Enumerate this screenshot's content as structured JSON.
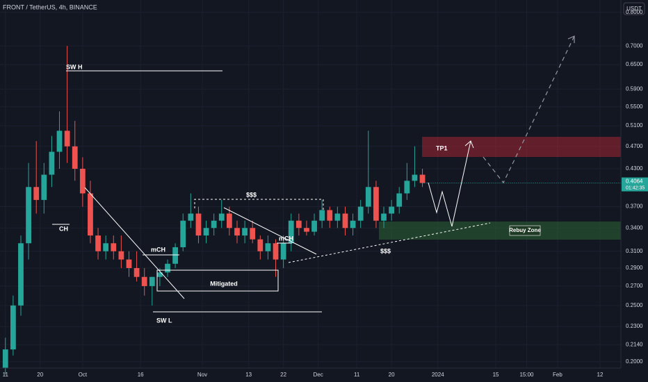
{
  "chart_data": {
    "type": "candlestick",
    "title": "FRONT / TetherUS, 4h, BINANCE",
    "currency": "USDT",
    "log_scale": true,
    "grid": true,
    "up_color": "#26a69a",
    "down_color": "#ef5350",
    "ylim": [
      0.195,
      0.84
    ],
    "yticks": [
      {
        "value": 0.2,
        "label": "0.2000"
      },
      {
        "value": 0.214,
        "label": "0.2140"
      },
      {
        "value": 0.23,
        "label": "0.2300"
      },
      {
        "value": 0.25,
        "label": "0.2500"
      },
      {
        "value": 0.27,
        "label": "0.2700"
      },
      {
        "value": 0.29,
        "label": "0.2900"
      },
      {
        "value": 0.31,
        "label": "0.3100"
      },
      {
        "value": 0.34,
        "label": "0.3400"
      },
      {
        "value": 0.37,
        "label": "0.3700"
      },
      {
        "value": 0.43,
        "label": "0.4300"
      },
      {
        "value": 0.47,
        "label": "0.4700"
      },
      {
        "value": 0.51,
        "label": "0.5100"
      },
      {
        "value": 0.55,
        "label": "0.5500"
      },
      {
        "value": 0.59,
        "label": "0.5900"
      },
      {
        "value": 0.65,
        "label": "0.6500"
      },
      {
        "value": 0.7,
        "label": "0.7000"
      },
      {
        "value": 0.8,
        "label": "0.8000"
      }
    ],
    "last_price": {
      "value": 0.4064,
      "label": "0.4064"
    },
    "countdown": "01:42:35",
    "xlim": [
      -0.7,
      79.7
    ],
    "xticks": [
      {
        "value": 0,
        "label": "11"
      },
      {
        "value": 4.5,
        "label": "20"
      },
      {
        "value": 10,
        "label": "Oct"
      },
      {
        "value": 17.5,
        "label": "16"
      },
      {
        "value": 25.5,
        "label": "Nov"
      },
      {
        "value": 31.5,
        "label": "13"
      },
      {
        "value": 36,
        "label": "22"
      },
      {
        "value": 40.5,
        "label": "Dec"
      },
      {
        "value": 45.5,
        "label": "11"
      },
      {
        "value": 50,
        "label": "20"
      },
      {
        "value": 56,
        "label": "2024"
      },
      {
        "value": 63.5,
        "label": "15"
      },
      {
        "value": 67.5,
        "label": "15:00"
      },
      {
        "value": 71.5,
        "label": "Feb"
      },
      {
        "value": 77,
        "label": "12"
      }
    ],
    "open": [
      0.195,
      0.21,
      0.25,
      0.32,
      0.4,
      0.38,
      0.42,
      0.46,
      0.5,
      0.47,
      0.43,
      0.39,
      0.33,
      0.31,
      0.32,
      0.31,
      0.3,
      0.29,
      0.28,
      0.27,
      0.28,
      0.285,
      0.295,
      0.315,
      0.35,
      0.36,
      0.33,
      0.34,
      0.35,
      0.36,
      0.34,
      0.33,
      0.34,
      0.325,
      0.31,
      0.32,
      0.3,
      0.32,
      0.35,
      0.34,
      0.335,
      0.35,
      0.365,
      0.35,
      0.36,
      0.34,
      0.35,
      0.37,
      0.4,
      0.35,
      0.36,
      0.37,
      0.39,
      0.41,
      0.42
    ],
    "high": [
      0.22,
      0.26,
      0.33,
      0.44,
      0.48,
      0.44,
      0.49,
      0.54,
      0.7,
      0.52,
      0.45,
      0.41,
      0.34,
      0.33,
      0.33,
      0.33,
      0.31,
      0.31,
      0.29,
      0.28,
      0.29,
      0.3,
      0.32,
      0.36,
      0.39,
      0.37,
      0.35,
      0.36,
      0.38,
      0.37,
      0.35,
      0.35,
      0.35,
      0.33,
      0.33,
      0.325,
      0.33,
      0.36,
      0.36,
      0.35,
      0.36,
      0.38,
      0.37,
      0.37,
      0.37,
      0.36,
      0.38,
      0.5,
      0.41,
      0.37,
      0.38,
      0.4,
      0.44,
      0.47,
      0.43
    ],
    "low": [
      0.19,
      0.205,
      0.24,
      0.3,
      0.36,
      0.36,
      0.4,
      0.43,
      0.44,
      0.41,
      0.37,
      0.32,
      0.3,
      0.3,
      0.3,
      0.29,
      0.28,
      0.275,
      0.26,
      0.25,
      0.27,
      0.28,
      0.29,
      0.31,
      0.34,
      0.32,
      0.32,
      0.33,
      0.34,
      0.33,
      0.32,
      0.32,
      0.32,
      0.3,
      0.3,
      0.28,
      0.29,
      0.31,
      0.33,
      0.33,
      0.33,
      0.34,
      0.34,
      0.34,
      0.33,
      0.33,
      0.34,
      0.36,
      0.34,
      0.34,
      0.35,
      0.36,
      0.38,
      0.4,
      0.4
    ],
    "close": [
      0.21,
      0.25,
      0.32,
      0.4,
      0.38,
      0.42,
      0.46,
      0.5,
      0.47,
      0.43,
      0.39,
      0.33,
      0.31,
      0.32,
      0.31,
      0.3,
      0.29,
      0.28,
      0.27,
      0.28,
      0.285,
      0.295,
      0.315,
      0.35,
      0.36,
      0.33,
      0.34,
      0.35,
      0.36,
      0.34,
      0.33,
      0.34,
      0.325,
      0.31,
      0.32,
      0.3,
      0.32,
      0.35,
      0.34,
      0.335,
      0.35,
      0.365,
      0.35,
      0.36,
      0.34,
      0.35,
      0.37,
      0.4,
      0.35,
      0.36,
      0.37,
      0.39,
      0.41,
      0.42,
      0.4064
    ],
    "annotations": [
      "SW H",
      "CH",
      "mCH",
      "$$$",
      "mCH",
      "Mitigated",
      "SW L",
      "$$$",
      "TP1",
      "Rebuy Zone"
    ]
  }
}
